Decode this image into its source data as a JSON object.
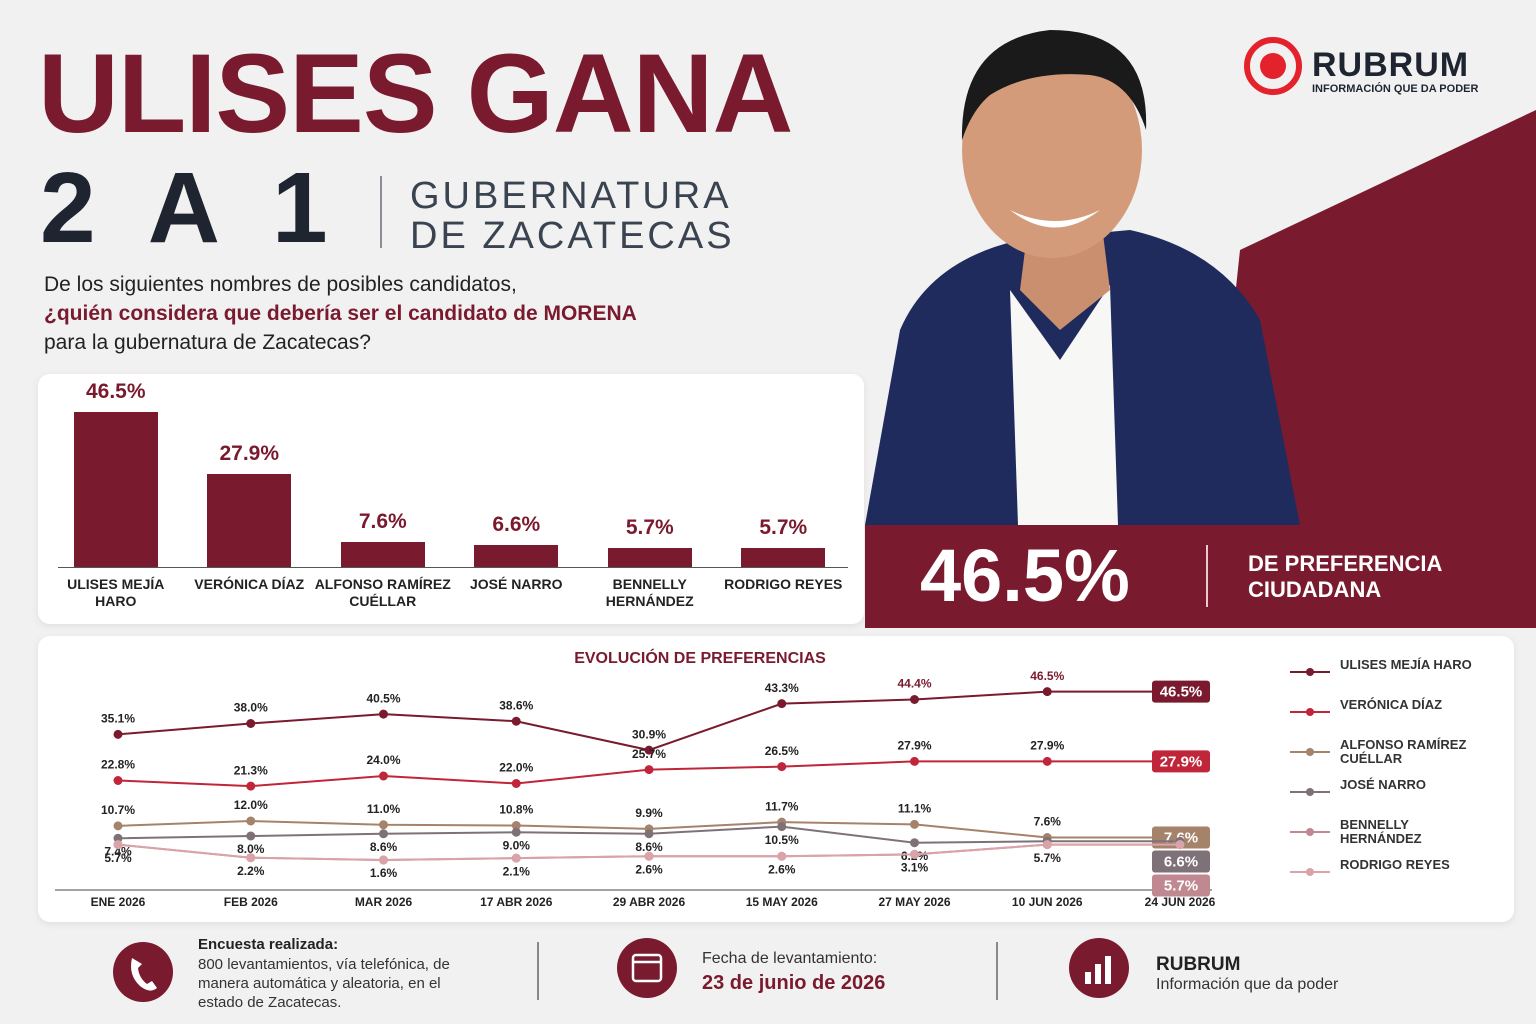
{
  "header": {
    "title": "ULISES GANA",
    "score": "2 A 1",
    "subtitle_lines": [
      "GUBERNATURA",
      "DE ZACATECAS"
    ]
  },
  "brand": {
    "name": "RUBRUM",
    "tagline": "INFORMACIÓN QUE DA PODER"
  },
  "question": {
    "line1": "De los siguientes nombres de posibles candidatos,",
    "emphasis": "¿quién considera que debería ser el candidato de MORENA",
    "line3": "para la gubernatura de Zacatecas?"
  },
  "highlight": {
    "value": "46.5%",
    "label": "DE PREFERENCIA CIUDADANA"
  },
  "chart_data": [
    {
      "type": "bar",
      "color": "#7a1a2e",
      "categories": [
        "ULISES MEJÍA HARO",
        "VERÓNICA DÍAZ",
        "ALFONSO RAMÍREZ CUÉLLAR",
        "JOSÉ NARRO",
        "BENNELLY HERNÁNDEZ",
        "RODRIGO REYES"
      ],
      "values": [
        46.5,
        27.9,
        7.6,
        6.6,
        5.7,
        5.7
      ],
      "value_labels": [
        "46.5%",
        "27.9%",
        "7.6%",
        "6.6%",
        "5.7%",
        "5.7%"
      ]
    },
    {
      "type": "line",
      "title": "EVOLUCIÓN DE PREFERENCIAS",
      "categories": [
        "ENE 2026",
        "FEB 2026",
        "MAR 2026",
        "17 ABR 2026",
        "29 ABR 2026",
        "15 MAY 2026",
        "27 MAY 2026",
        "10 JUN 2026",
        "24 JUN 2026"
      ],
      "series": [
        {
          "name": "ULISES MEJÍA HARO",
          "color": "#7a1a2e",
          "values": [
            35.1,
            38.0,
            40.5,
            38.6,
            30.9,
            43.3,
            44.4,
            46.5,
            46.5
          ],
          "value_labels": [
            "35.1%",
            "38.0%",
            "40.5%",
            "38.6%",
            "30.9%",
            "43.3%",
            "44.4%",
            "46.5%",
            "46.5%"
          ]
        },
        {
          "name": "VERÓNICA DÍAZ",
          "color": "#c0253a",
          "values": [
            22.8,
            21.3,
            24.0,
            22.0,
            25.7,
            26.5,
            27.9,
            27.9,
            27.9
          ],
          "value_labels": [
            "22.8%",
            "21.3%",
            "24.0%",
            "22.0%",
            "25.7%",
            "26.5%",
            "27.9%",
            "27.9%",
            "27.9%"
          ]
        },
        {
          "name": "ALFONSO RAMÍREZ CUÉLLAR",
          "color": "#a5826a",
          "values": [
            10.7,
            12.0,
            11.0,
            10.8,
            9.9,
            11.7,
            11.1,
            7.6,
            7.6
          ],
          "value_labels": [
            "10.7%",
            "12.0%",
            "11.0%",
            "10.8%",
            "9.9%",
            "11.7%",
            "11.1%",
            "7.6%",
            "7.6%"
          ]
        },
        {
          "name": "JOSÉ NARRO",
          "color": "#7e7278",
          "values": [
            7.4,
            8.0,
            8.6,
            9.0,
            8.6,
            10.5,
            6.2,
            6.6,
            6.6
          ],
          "value_labels": [
            "7.4%",
            "8.0%",
            "8.6%",
            "9.0%",
            "8.6%",
            "10.5%",
            "6.2%",
            null,
            "6.6%"
          ]
        },
        {
          "name": "BENNELLY HERNÁNDEZ",
          "color": "#c08890",
          "values": [
            5.7,
            2.2,
            1.6,
            2.1,
            2.6,
            2.6,
            3.1,
            5.7,
            5.7
          ],
          "value_labels": [
            "5.7%",
            "2.2%",
            "1.6%",
            "2.1%",
            "2.6%",
            "2.6%",
            "3.1%",
            "5.7%",
            "5.7%"
          ]
        },
        {
          "name": "RODRIGO REYES",
          "color": "#d9a3a8",
          "values": [
            5.7,
            2.2,
            1.6,
            2.1,
            2.6,
            2.6,
            3.1,
            5.7,
            5.7
          ],
          "value_labels": [
            null,
            null,
            null,
            null,
            null,
            null,
            null,
            null,
            null
          ]
        }
      ]
    }
  ],
  "footer": {
    "survey": {
      "title": "Encuesta realizada:",
      "text": "800 levantamientos, vía telefónica, de manera automática y aleatoria, en el estado de Zacatecas."
    },
    "date": {
      "label": "Fecha de levantamiento:",
      "value": "23 de junio de 2026"
    },
    "brand": {
      "name": "RUBRUM",
      "tagline": "Información que da poder"
    }
  }
}
